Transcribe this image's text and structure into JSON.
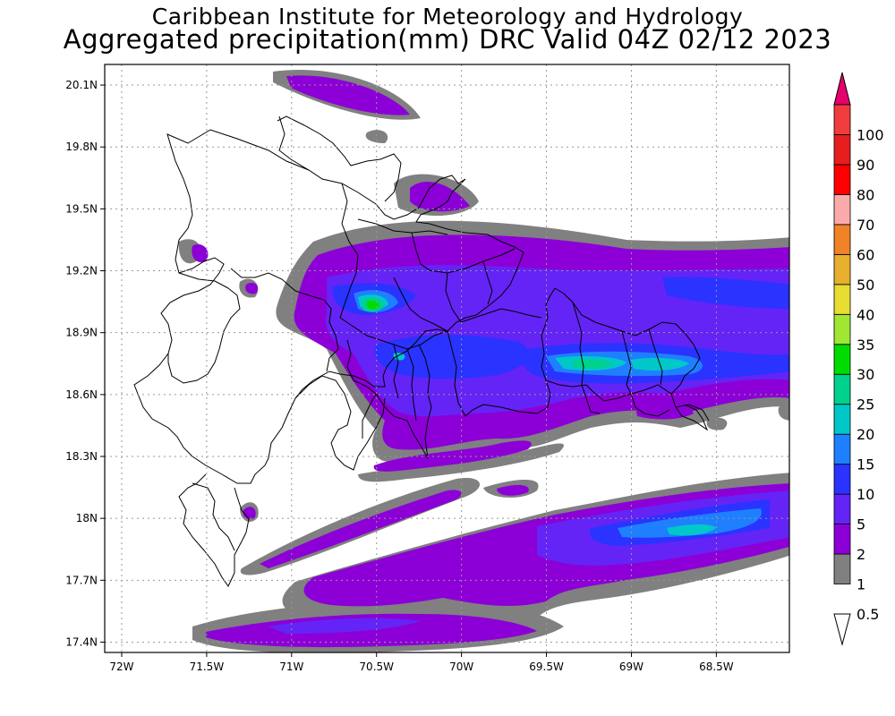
{
  "title": {
    "line1": "Caribbean Institute for Meteorology and Hydrology",
    "line2": "Aggregated precipitation(mm) DRC Valid 04Z 02/12 2023"
  },
  "map": {
    "lon_range": [
      -72.1,
      -68.07
    ],
    "lat_range": [
      17.35,
      20.2
    ],
    "lon_ticks": [
      {
        "value": -72,
        "label": "72W"
      },
      {
        "value": -71.5,
        "label": "71.5W"
      },
      {
        "value": -71,
        "label": "71W"
      },
      {
        "value": -70.5,
        "label": "70.5W"
      },
      {
        "value": -70,
        "label": "70W"
      },
      {
        "value": -69.5,
        "label": "69.5W"
      },
      {
        "value": -69,
        "label": "69W"
      },
      {
        "value": -68.5,
        "label": "68.5W"
      }
    ],
    "lat_ticks": [
      {
        "value": 17.4,
        "label": "17.4N"
      },
      {
        "value": 17.7,
        "label": "17.7N"
      },
      {
        "value": 18.0,
        "label": "18N"
      },
      {
        "value": 18.3,
        "label": "18.3N"
      },
      {
        "value": 18.6,
        "label": "18.6N"
      },
      {
        "value": 18.9,
        "label": "18.9N"
      },
      {
        "value": 19.2,
        "label": "19.2N"
      },
      {
        "value": 19.5,
        "label": "19.5N"
      },
      {
        "value": 19.8,
        "label": "19.8N"
      },
      {
        "value": 20.1,
        "label": "20.1N"
      }
    ],
    "grid": true
  },
  "colorbar": {
    "levels": [
      {
        "label": "0.5",
        "color": "#ffffff"
      },
      {
        "label": "1",
        "color": "#808080"
      },
      {
        "label": "2",
        "color": "#8c00d7"
      },
      {
        "label": "5",
        "color": "#6424f5"
      },
      {
        "label": "10",
        "color": "#2a33ff"
      },
      {
        "label": "15",
        "color": "#1e80ff"
      },
      {
        "label": "20",
        "color": "#00c8c8"
      },
      {
        "label": "25",
        "color": "#00d18c"
      },
      {
        "label": "30",
        "color": "#00dc00"
      },
      {
        "label": "35",
        "color": "#a0e632"
      },
      {
        "label": "40",
        "color": "#e6dc32"
      },
      {
        "label": "50",
        "color": "#e6af2d"
      },
      {
        "label": "60",
        "color": "#f08228"
      },
      {
        "label": "70",
        "color": "#faaaaa"
      },
      {
        "label": "80",
        "color": "#ff0000"
      },
      {
        "label": "90",
        "color": "#e61e1e"
      },
      {
        "label": "100",
        "color": "#f03c3c"
      }
    ],
    "top_arrow_color": "#e6006e",
    "bottom_arrow_color": "#ffffff"
  }
}
